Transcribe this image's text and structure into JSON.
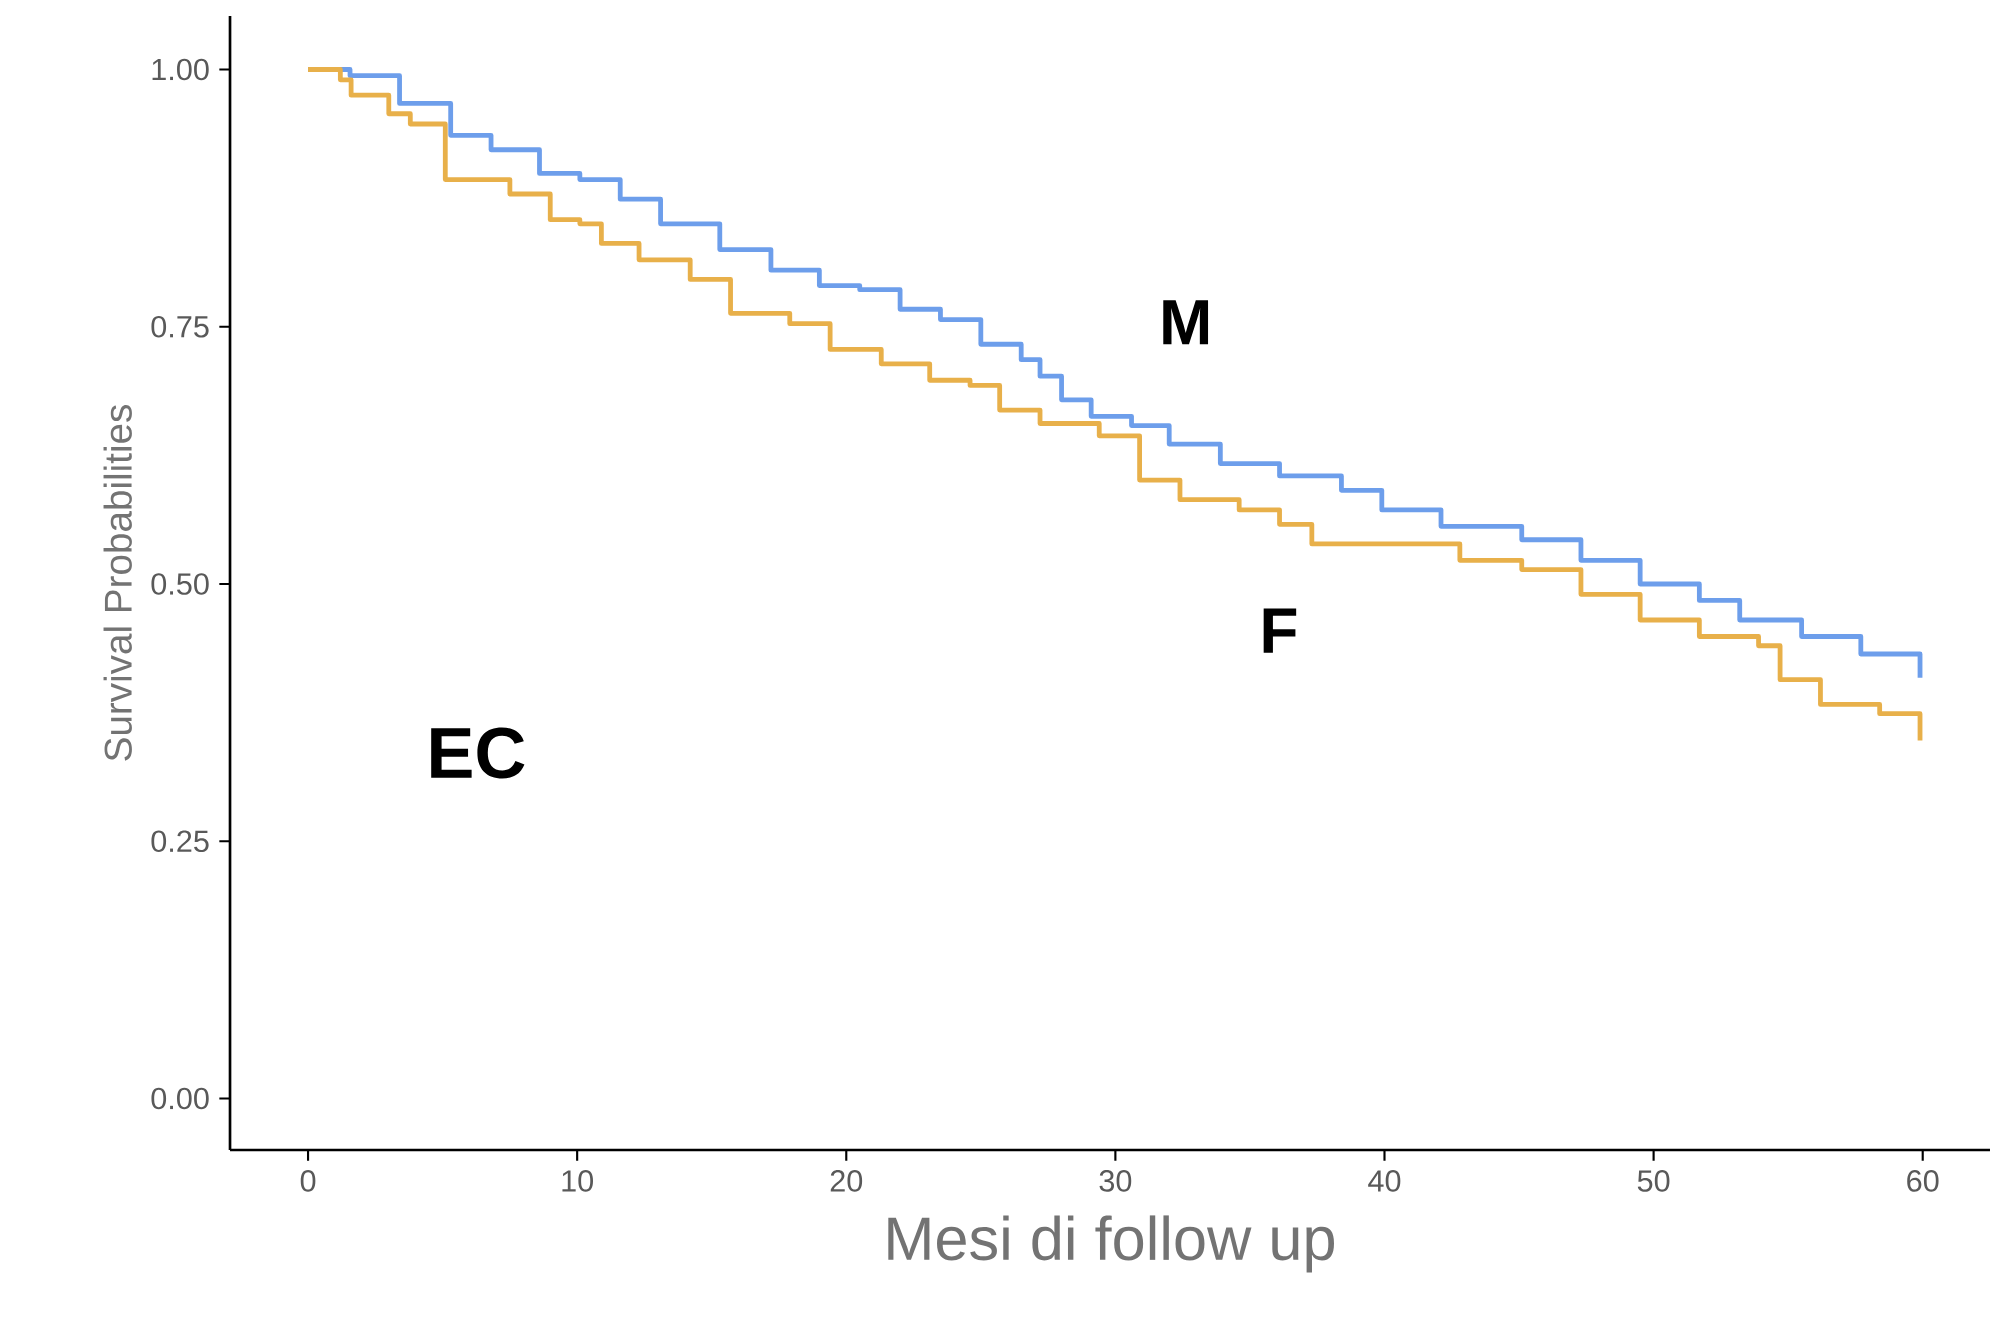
{
  "chart_data": {
    "type": "step",
    "xlabel": "Mesi di follow up",
    "ylabel": "Survival Probabilities",
    "xlim": [
      -2.9,
      62.5
    ],
    "ylim": [
      -0.05,
      1.052
    ],
    "xticks": [
      0,
      10,
      20,
      30,
      40,
      50,
      60
    ],
    "yticks": [
      {
        "value": 0,
        "label": "0.00"
      },
      {
        "value": 0.25,
        "label": "0.25"
      },
      {
        "value": 0.5,
        "label": "0.50"
      },
      {
        "value": 0.75,
        "label": "0.75"
      },
      {
        "value": 1,
        "label": "1.00"
      }
    ],
    "line_style": "solid",
    "annotations": [
      "M",
      "F",
      "EC"
    ],
    "series": [
      {
        "color": "#6d9eeb",
        "x": [
          0,
          1.56,
          3.4,
          5.3,
          6.8,
          8.6,
          10.1,
          11.6,
          13.1,
          15.3,
          17.2,
          19,
          20.5,
          22,
          23.5,
          25,
          26.5,
          27.2,
          28,
          29.1,
          30.6,
          32,
          33.9,
          36.1,
          38.4,
          39.9,
          42.1,
          45.1,
          47.3,
          49.5,
          51.7,
          53.2,
          55.5,
          57.7,
          59.9
        ],
        "values": [
          1.0,
          0.994,
          0.967,
          0.936,
          0.922,
          0.899,
          0.893,
          0.874,
          0.85,
          0.825,
          0.805,
          0.79,
          0.786,
          0.767,
          0.757,
          0.733,
          0.718,
          0.702,
          0.679,
          0.663,
          0.654,
          0.636,
          0.617,
          0.605,
          0.591,
          0.572,
          0.556,
          0.543,
          0.523,
          0.5,
          0.484,
          0.465,
          0.449,
          0.432,
          0.409
        ]
      },
      {
        "color": "#e8b04a",
        "x": [
          0,
          1.2,
          1.6,
          3,
          3.8,
          5.1,
          6.9,
          7.5,
          9,
          10.1,
          10.9,
          12.3,
          14.2,
          15.7,
          17.9,
          19.4,
          21.3,
          23.1,
          24.6,
          25.7,
          27.2,
          29.4,
          30.9,
          32.4,
          34.6,
          36.1,
          37.3,
          41.3,
          42.8,
          45.1,
          47.3,
          49.5,
          51.7,
          53.9,
          54.7,
          56.2,
          58.4,
          59.9
        ],
        "values": [
          1.0,
          0.99,
          0.975,
          0.957,
          0.947,
          0.893,
          0.893,
          0.879,
          0.854,
          0.85,
          0.831,
          0.815,
          0.796,
          0.763,
          0.753,
          0.728,
          0.714,
          0.698,
          0.693,
          0.669,
          0.656,
          0.644,
          0.601,
          0.582,
          0.572,
          0.558,
          0.539,
          0.539,
          0.523,
          0.514,
          0.49,
          0.465,
          0.449,
          0.44,
          0.407,
          0.383,
          0.374,
          0.348
        ]
      }
    ]
  }
}
